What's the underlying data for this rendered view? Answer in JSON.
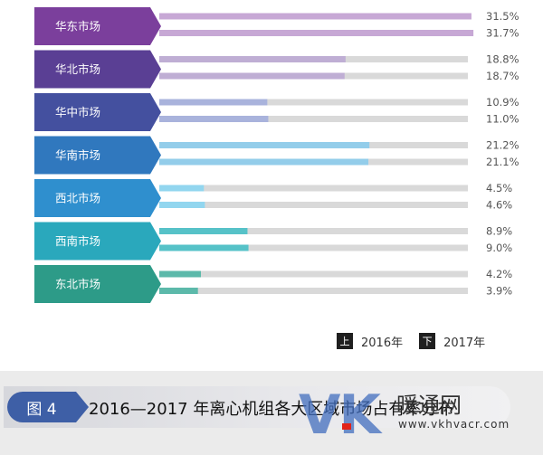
{
  "chart_data": {
    "type": "bar",
    "orientation": "horizontal",
    "xlim": [
      0,
      35
    ],
    "categories": [
      "华东市场",
      "华北市场",
      "华中市场",
      "华南市场",
      "西北市场",
      "西南市场",
      "东北市场"
    ],
    "series": [
      {
        "name": "2016年",
        "values": [
          31.5,
          18.8,
          10.9,
          21.2,
          4.5,
          8.9,
          4.2
        ]
      },
      {
        "name": "2017年",
        "values": [
          31.7,
          18.7,
          11.0,
          21.1,
          4.6,
          9.0,
          3.9
        ]
      }
    ],
    "value_labels": [
      [
        "31.5%",
        "31.7%"
      ],
      [
        "18.8%",
        "18.7%"
      ],
      [
        "10.9%",
        "11.0%"
      ],
      [
        "21.2%",
        "21.1%"
      ],
      [
        "4.5%",
        "4.6%"
      ],
      [
        "8.9%",
        "9.0%"
      ],
      [
        "4.2%",
        "3.9%"
      ]
    ],
    "category_colors": [
      "#7b3f9c",
      "#5a3f94",
      "#44509f",
      "#3078be",
      "#2f8fce",
      "#2aa8bc",
      "#2d9b88"
    ],
    "bar_colors": [
      "#c7a8d5",
      "#bfaed4",
      "#a9b3dc",
      "#93cdea",
      "#92d6ef",
      "#56c2c8",
      "#5cb9aa"
    ],
    "track_color": "#d9d9d9",
    "legend": {
      "placement": "bottom-right",
      "items": [
        {
          "marker": "上",
          "label": "2016年"
        },
        {
          "marker": "下",
          "label": "2017年"
        }
      ]
    }
  },
  "figure": {
    "badge": "图 4",
    "caption": "2016—2017 年离心机组各大区域市场占有率分布"
  },
  "watermark": {
    "logo": "VK",
    "name": "暖通网",
    "url": "www.vkhvacr.com",
    "logo_color": "#426ebe",
    "accent_red": "#e2231a"
  }
}
